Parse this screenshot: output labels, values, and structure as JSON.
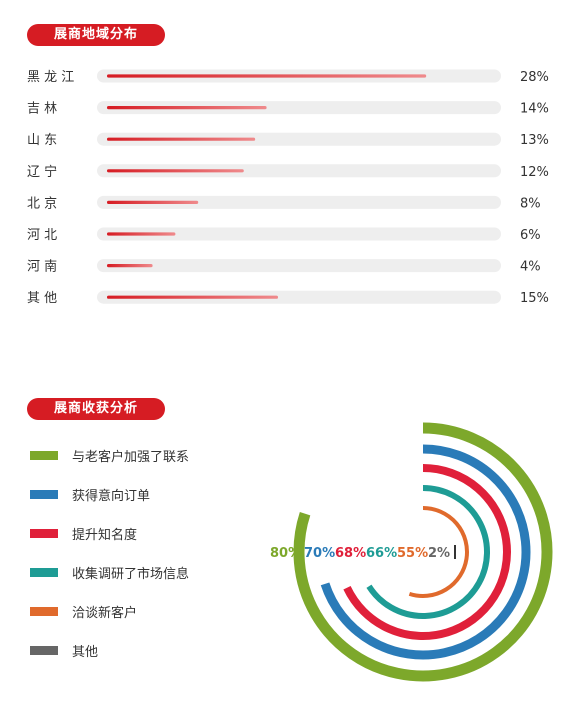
{
  "sections": {
    "region_title": "展商地域分布",
    "outcome_title": "展商收获分析"
  },
  "chart_data": [
    {
      "type": "bar",
      "orientation": "horizontal",
      "title": "展商地域分布",
      "categories": [
        "黑龙江",
        "吉林",
        "山东",
        "辽宁",
        "北京",
        "河北",
        "河南",
        "其他"
      ],
      "category_labels": [
        "黑 龙 江",
        "吉 林",
        "山 东",
        "辽 宁",
        "北 京",
        "河 北",
        "河 南",
        "其 他"
      ],
      "values": [
        28,
        14,
        13,
        12,
        8,
        6,
        4,
        15
      ],
      "value_labels": [
        "28%",
        "14%",
        "13%",
        "12%",
        "8%",
        "6%",
        "4%",
        "15%"
      ],
      "unit": "%",
      "bar_color": "#d61c23",
      "track_color": "#eeeeee"
    },
    {
      "type": "radial",
      "title": "展商收获分析",
      "series": [
        {
          "name": "与老客户加强了联系",
          "value": 80,
          "label": "80%",
          "color": "#7da82b"
        },
        {
          "name": "获得意向订单",
          "value": 70,
          "label": "70%",
          "color": "#2a7bb8"
        },
        {
          "name": "提升知名度",
          "value": 68,
          "label": "68%",
          "color": "#e0203a"
        },
        {
          "name": "收集调研了市场信息",
          "value": 66,
          "label": "66%",
          "color": "#1e9c95"
        },
        {
          "name": "洽谈新客户",
          "value": 55,
          "label": "55%",
          "color": "#e06a2c"
        },
        {
          "name": "其他",
          "value": 2,
          "label": "2%",
          "color": "#666666"
        }
      ]
    }
  ]
}
